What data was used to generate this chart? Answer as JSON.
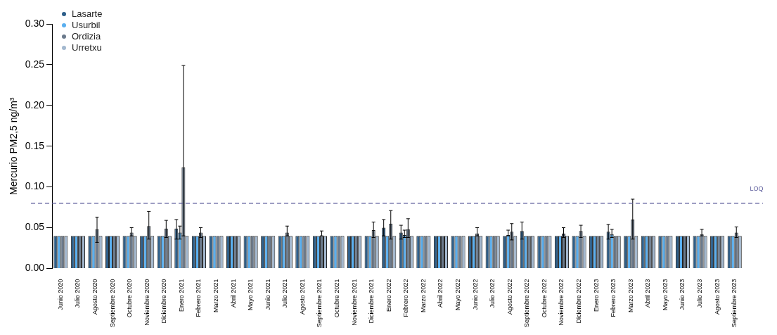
{
  "chart_data": {
    "type": "bar",
    "ylabel": "Mercurio PM2,5 ng/m³",
    "categories": [
      "Junio 2020",
      "Julio 2020",
      "Agosto 2020",
      "Septiembre 2020",
      "Octubre 2020",
      "Noviembre 2020",
      "Diciembre 2020",
      "Enero 2021",
      "Febrero 2021",
      "Marzo 2021",
      "Abril 2021",
      "Mayo 2021",
      "Junio 2021",
      "Julio 2021",
      "Agosto 2021",
      "Septiembre 2021",
      "Octubre 2021",
      "Noviembre 2021",
      "Diciembre 2021",
      "Enero 2022",
      "Febrero 2022",
      "Marzo 2022",
      "Abril 2022",
      "Mayo 2022",
      "Junio 2022",
      "Julio 2022",
      "Agosto 2022",
      "Septiembre 2022",
      "Octubre 2022",
      "Noviembre 2022",
      "Diciembre 2022",
      "Enero 2023",
      "Febrero 2023",
      "Marzo 2023",
      "Abril 2023",
      "Mayo 2023",
      "Junio 2023",
      "Julio 2023",
      "Agosto 2023",
      "Septiembre 2023"
    ],
    "series": [
      {
        "name": "Lasarte",
        "color": "#2e5f8a",
        "values": [
          0.04,
          0.04,
          0.04,
          0.04,
          0.04,
          0.04,
          0.04,
          0.049,
          0.04,
          0.04,
          0.04,
          0.04,
          0.04,
          0.04,
          0.04,
          0.04,
          0.04,
          0.04,
          0.04,
          0.05,
          0.044,
          0.04,
          0.04,
          0.04,
          0.04,
          0.04,
          0.04,
          0.046,
          0.04,
          0.04,
          0.04,
          0.04,
          0.045,
          0.04,
          0.04,
          0.04,
          0.04,
          0.04,
          0.04,
          0.04
        ],
        "errors": [
          null,
          null,
          null,
          null,
          null,
          null,
          null,
          [
            0.036,
            0.06
          ],
          null,
          null,
          null,
          null,
          null,
          null,
          null,
          null,
          null,
          null,
          null,
          [
            0.04,
            0.06
          ],
          [
            0.036,
            0.053
          ],
          null,
          null,
          null,
          null,
          null,
          null,
          [
            0.036,
            0.057
          ],
          null,
          null,
          null,
          null,
          [
            0.036,
            0.054
          ],
          null,
          null,
          null,
          null,
          null,
          null,
          null
        ]
      },
      {
        "name": "Usurbil",
        "color": "#5aafef",
        "values": [
          0.04,
          0.04,
          0.04,
          0.04,
          0.04,
          0.04,
          0.04,
          0.044,
          0.04,
          0.04,
          0.04,
          0.04,
          0.04,
          0.04,
          0.04,
          0.04,
          0.04,
          0.04,
          0.04,
          0.04,
          0.041,
          0.04,
          0.04,
          0.04,
          0.04,
          0.04,
          0.041,
          0.04,
          0.04,
          0.04,
          0.04,
          0.04,
          0.042,
          0.04,
          0.04,
          0.04,
          0.04,
          0.04,
          0.04,
          0.04
        ],
        "errors": [
          null,
          null,
          null,
          null,
          null,
          null,
          null,
          [
            0.036,
            0.052
          ],
          null,
          null,
          null,
          null,
          null,
          null,
          null,
          null,
          null,
          null,
          null,
          null,
          [
            0.038,
            0.047
          ],
          null,
          null,
          null,
          null,
          null,
          [
            0.04,
            0.047
          ],
          null,
          null,
          null,
          null,
          null,
          [
            0.038,
            0.048
          ],
          null,
          null,
          null,
          null,
          null,
          null,
          null
        ]
      },
      {
        "name": "Ordizia",
        "color": "#6b7a8c",
        "values": [
          0.04,
          0.04,
          0.048,
          0.04,
          0.044,
          0.052,
          0.049,
          0.124,
          0.044,
          0.04,
          0.04,
          0.04,
          0.04,
          0.044,
          0.04,
          0.04,
          0.04,
          0.04,
          0.047,
          0.055,
          0.048,
          0.04,
          0.04,
          0.04,
          0.043,
          0.04,
          0.045,
          0.04,
          0.04,
          0.043,
          0.046,
          0.04,
          0.04,
          0.06,
          0.04,
          0.04,
          0.04,
          0.042,
          0.04,
          0.044
        ],
        "errors": [
          null,
          null,
          [
            0.032,
            0.063
          ],
          null,
          [
            0.04,
            0.05
          ],
          [
            0.036,
            0.07
          ],
          [
            0.038,
            0.059
          ],
          [
            0.04,
            0.249
          ],
          [
            0.038,
            0.05
          ],
          null,
          null,
          null,
          null,
          [
            0.04,
            0.052
          ],
          null,
          [
            0.04,
            0.046
          ],
          null,
          null,
          [
            0.038,
            0.057
          ],
          [
            0.036,
            0.071
          ],
          [
            0.038,
            0.061
          ],
          null,
          null,
          null,
          [
            0.04,
            0.05
          ],
          null,
          [
            0.035,
            0.055
          ],
          null,
          null,
          [
            0.038,
            0.05
          ],
          [
            0.038,
            0.053
          ],
          null,
          null,
          [
            0.036,
            0.085
          ],
          null,
          null,
          null,
          [
            0.04,
            0.048
          ],
          null,
          [
            0.038,
            0.051
          ]
        ]
      },
      {
        "name": "Urretxu",
        "color": "#a3b8cf",
        "values": [
          0.04,
          0.04,
          0.04,
          0.04,
          0.04,
          0.04,
          0.04,
          0.04,
          0.04,
          0.04,
          0.04,
          0.04,
          0.04,
          0.04,
          0.04,
          0.04,
          0.04,
          0.04,
          0.04,
          0.04,
          0.04,
          0.04,
          0.04,
          0.04,
          0.04,
          0.04,
          0.04,
          0.04,
          0.04,
          0.04,
          0.04,
          0.04,
          0.04,
          0.04,
          0.04,
          0.04,
          0.04,
          0.04,
          0.04,
          0.04
        ]
      }
    ],
    "ylim": [
      0,
      0.3
    ],
    "yticks": [
      {
        "value": 0,
        "label": "0.00"
      },
      {
        "value": 0.05,
        "label": "0.05"
      },
      {
        "value": 0.1,
        "label": "0.10"
      },
      {
        "value": 0.15,
        "label": "0.15"
      },
      {
        "value": 0.2,
        "label": "0.20"
      },
      {
        "value": 0.25,
        "label": "0.25"
      },
      {
        "value": 0.3,
        "label": "0.30"
      }
    ],
    "ref_lines": [
      {
        "axis": "y",
        "value": 0.08,
        "label": "LOQ",
        "color": "#5a5a9a",
        "line_style": "dashed"
      }
    ],
    "grid": false,
    "legend": "top left"
  }
}
